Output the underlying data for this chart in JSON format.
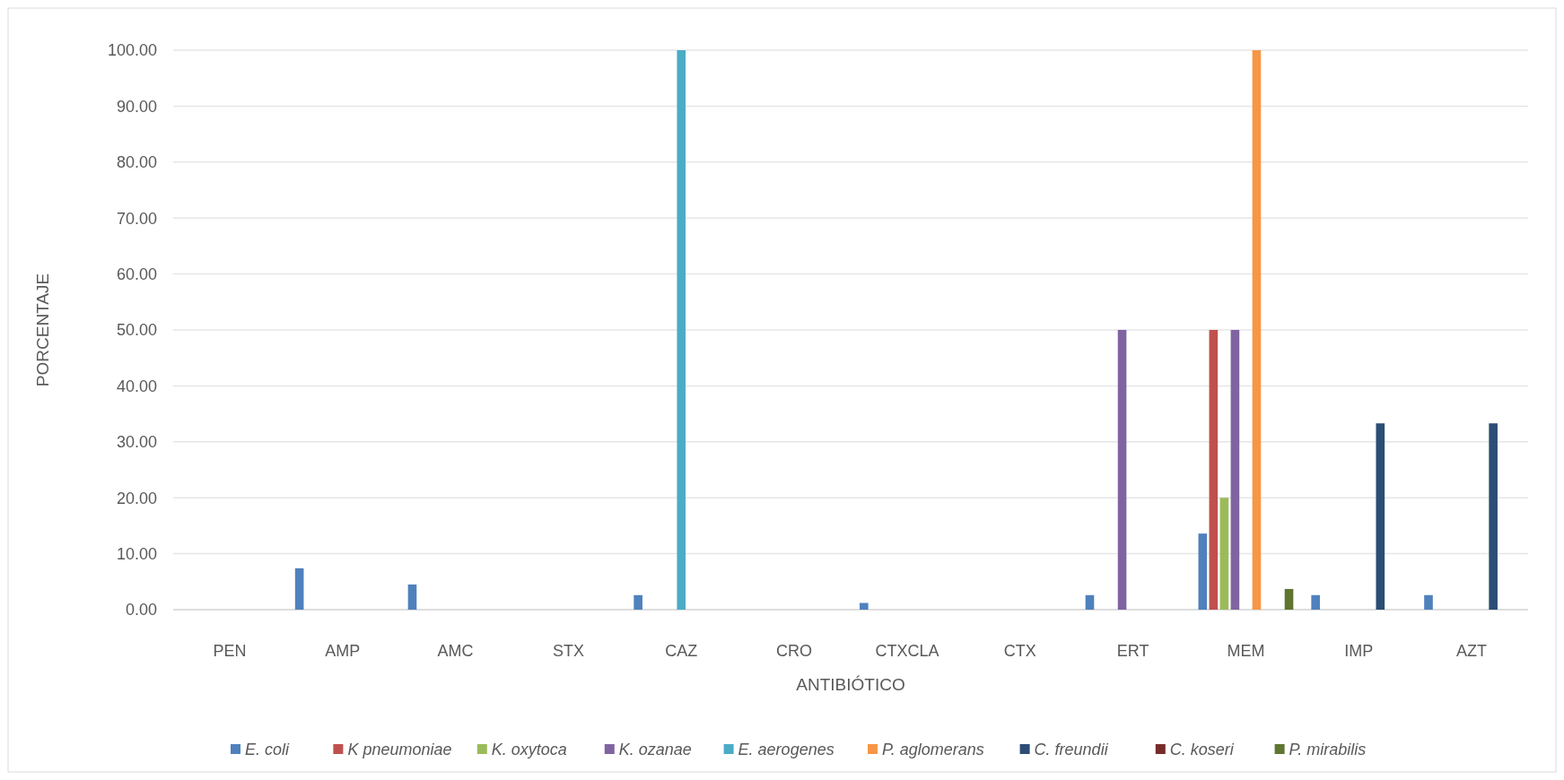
{
  "chart_data": {
    "type": "bar",
    "xlabel": "ANTIBIÓTICO",
    "ylabel": "PORCENTAJE",
    "categories": [
      "PEN",
      "AMP",
      "AMC",
      "STX",
      "CAZ",
      "CRO",
      "CTXCLA",
      "CTX",
      "ERT",
      "MEM",
      "IMP",
      "AZT"
    ],
    "series": [
      {
        "name": "E. coli",
        "color": "#4f81bd",
        "values": [
          null,
          7.4,
          4.5,
          null,
          2.6,
          null,
          1.2,
          null,
          2.6,
          13.6,
          2.6,
          2.6
        ]
      },
      {
        "name": "K pneumoniae",
        "color": "#c0504d",
        "values": [
          null,
          null,
          null,
          null,
          null,
          null,
          null,
          null,
          null,
          50,
          null,
          null
        ]
      },
      {
        "name": "K. oxytoca",
        "color": "#9bbb59",
        "values": [
          null,
          null,
          null,
          null,
          null,
          null,
          null,
          null,
          null,
          20,
          null,
          null
        ]
      },
      {
        "name": "K. ozanae",
        "color": "#8064a2",
        "values": [
          null,
          null,
          null,
          null,
          null,
          null,
          null,
          null,
          50,
          50,
          null,
          null
        ]
      },
      {
        "name": "E. aerogenes",
        "color": "#4bacc6",
        "values": [
          null,
          null,
          null,
          null,
          100,
          null,
          null,
          null,
          null,
          null,
          null,
          null
        ]
      },
      {
        "name": "P. aglomerans",
        "color": "#f79646",
        "values": [
          null,
          null,
          null,
          null,
          null,
          null,
          null,
          null,
          null,
          100,
          null,
          null
        ]
      },
      {
        "name": "C. freundii",
        "color": "#2c4d75",
        "values": [
          null,
          null,
          null,
          null,
          null,
          null,
          null,
          null,
          null,
          null,
          33.3,
          33.3
        ]
      },
      {
        "name": "C. koseri",
        "color": "#772c2a",
        "values": [
          null,
          null,
          null,
          null,
          null,
          null,
          null,
          null,
          null,
          null,
          null,
          null
        ]
      },
      {
        "name": "P. mirabilis",
        "color": "#5f7530",
        "values": [
          null,
          null,
          null,
          null,
          null,
          null,
          null,
          null,
          null,
          3.7,
          null,
          null
        ]
      }
    ],
    "ylim": [
      0,
      100
    ],
    "yticks": [
      {
        "value": 0,
        "label": "0.00"
      },
      {
        "value": 10,
        "label": "10.00"
      },
      {
        "value": 20,
        "label": "20.00"
      },
      {
        "value": 30,
        "label": "30.00"
      },
      {
        "value": 40,
        "label": "40.00"
      },
      {
        "value": 50,
        "label": "50.00"
      },
      {
        "value": 60,
        "label": "60.00"
      },
      {
        "value": 70,
        "label": "70.00"
      },
      {
        "value": 80,
        "label": "80.00"
      },
      {
        "value": 90,
        "label": "90.00"
      },
      {
        "value": 100,
        "label": "100.00"
      }
    ],
    "grid": "y",
    "legend": "bottom"
  }
}
